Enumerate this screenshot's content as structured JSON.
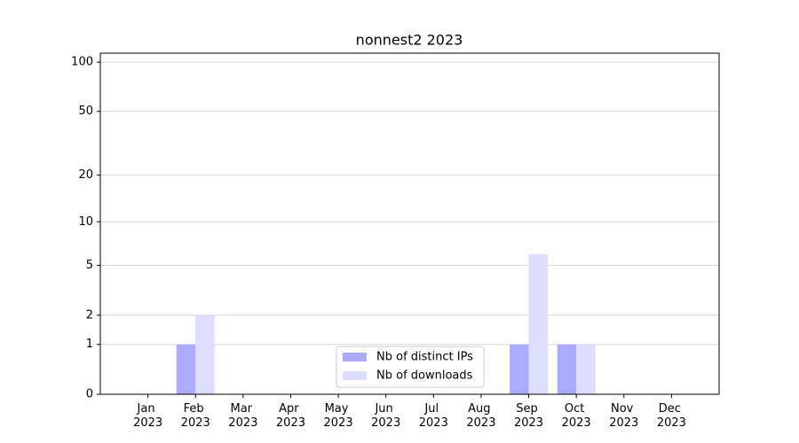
{
  "chart_data": {
    "type": "bar",
    "title": "nonnest2 2023",
    "categories": [
      "Jan 2023",
      "Feb 2023",
      "Mar 2023",
      "Apr 2023",
      "May 2023",
      "Jun 2023",
      "Jul 2023",
      "Aug 2023",
      "Sep 2023",
      "Oct 2023",
      "Nov 2023",
      "Dec 2023"
    ],
    "series": [
      {
        "name": "Nb of distinct IPs",
        "color": "#aaaaff",
        "values": [
          0,
          1,
          0,
          0,
          0,
          0,
          0,
          0,
          1,
          1,
          0,
          0
        ]
      },
      {
        "name": "Nb of downloads",
        "color": "#ddddff",
        "values": [
          0,
          2,
          0,
          0,
          0,
          0,
          0,
          0,
          6,
          1,
          0,
          0
        ]
      }
    ],
    "yscale": "log1p",
    "ylim": [
      0,
      113.5
    ],
    "yticks": [
      0,
      1,
      2,
      5,
      10,
      20,
      50,
      100
    ],
    "grid": true,
    "legend": "lower center"
  }
}
